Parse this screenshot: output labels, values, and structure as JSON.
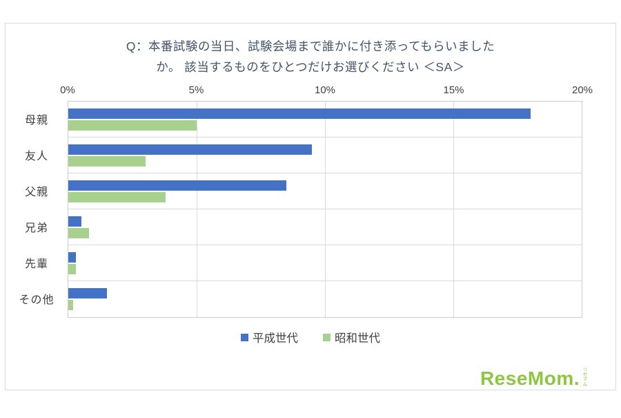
{
  "title_line1": "Q：本番試験の当日、試験会場まで誰かに付き添ってもらいました",
  "title_line2": "か。 該当するものをひとつだけお選びください ＜SA＞",
  "chart_data": {
    "type": "bar",
    "orientation": "horizontal",
    "title": "Q：本番試験の当日、試験会場まで誰かに付き添ってもらいましたか。該当するものをひとつだけお選びください＜SA＞",
    "categories": [
      "母親",
      "友人",
      "父親",
      "兄弟",
      "先輩",
      "その他"
    ],
    "series": [
      {
        "name": "平成世代",
        "color": "#4472c4",
        "values": [
          18,
          9.5,
          8.5,
          0.5,
          0.3,
          1.5
        ]
      },
      {
        "name": "昭和世代",
        "color": "#a9d18e",
        "values": [
          5,
          3,
          3.8,
          0.8,
          0.3,
          0.2
        ]
      }
    ],
    "xlim": [
      0,
      20
    ],
    "x_ticks": [
      "0%",
      "5%",
      "10%",
      "15%",
      "20%"
    ],
    "grid": true,
    "legend_position": "bottom"
  },
  "logo": {
    "text": "ReseMom.",
    "vertical_text": "リセマム",
    "color": "#8dc63f"
  }
}
